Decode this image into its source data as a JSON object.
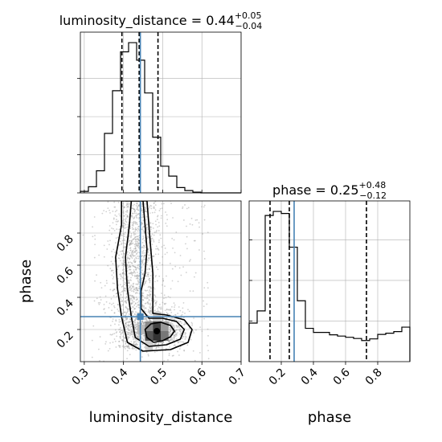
{
  "chart_data": [
    {
      "panel": "top-left",
      "type": "histogram",
      "parameter": "luminosity_distance",
      "title": {
        "prefix": "luminosity_distance = ",
        "median": "0.44",
        "upper": "+0.05",
        "lower": "−0.04"
      },
      "xlim": [
        0.29,
        0.7
      ],
      "bin_edges": [
        0.29,
        0.3105,
        0.331,
        0.3515,
        0.372,
        0.3925,
        0.413,
        0.4335,
        0.454,
        0.4745,
        0.495,
        0.5155,
        0.536,
        0.5565,
        0.577,
        0.5975,
        0.618,
        0.6385,
        0.659,
        0.6795,
        0.7
      ],
      "counts": [
        2,
        8,
        29,
        78,
        134,
        185,
        197,
        174,
        131,
        73,
        35,
        22,
        7,
        3,
        1,
        0,
        0,
        0,
        0,
        0
      ],
      "quantile_lines": [
        0.396,
        0.44,
        0.488
      ],
      "truth": 0.443,
      "grid": true
    },
    {
      "panel": "bottom-left",
      "type": "scatter",
      "x": "luminosity_distance",
      "y": "phase",
      "xlabel": "luminosity_distance",
      "ylabel": "phase",
      "xlim": [
        0.29,
        0.7
      ],
      "ylim": [
        0.0,
        1.0
      ],
      "xticks": [
        "0.3",
        "0.4",
        "0.5",
        "0.6",
        "0.7"
      ],
      "yticks": [
        "0.2",
        "0.4",
        "0.6",
        "0.8"
      ],
      "truth": {
        "x": 0.443,
        "y": 0.28
      },
      "density_peak": {
        "x": 0.485,
        "y": 0.19
      },
      "contours": [
        [
          [
            0.477,
            0.12
          ],
          [
            0.5,
            0.13
          ],
          [
            0.52,
            0.155
          ],
          [
            0.53,
            0.19
          ],
          [
            0.52,
            0.225
          ],
          [
            0.495,
            0.245
          ],
          [
            0.47,
            0.235
          ],
          [
            0.455,
            0.2
          ],
          [
            0.46,
            0.15
          ]
        ],
        [
          [
            0.465,
            0.095
          ],
          [
            0.51,
            0.105
          ],
          [
            0.545,
            0.14
          ],
          [
            0.555,
            0.2
          ],
          [
            0.535,
            0.25
          ],
          [
            0.5,
            0.27
          ],
          [
            0.465,
            0.27
          ],
          [
            0.445,
            0.33
          ],
          [
            0.445,
            0.44
          ],
          [
            0.455,
            0.55
          ],
          [
            0.46,
            0.7
          ],
          [
            0.45,
            1.0
          ],
          [
            0.42,
            1.0
          ],
          [
            0.415,
            0.85
          ],
          [
            0.405,
            0.65
          ],
          [
            0.41,
            0.45
          ],
          [
            0.42,
            0.28
          ],
          [
            0.43,
            0.15
          ]
        ],
        [
          [
            0.45,
            0.065
          ],
          [
            0.52,
            0.075
          ],
          [
            0.565,
            0.12
          ],
          [
            0.575,
            0.2
          ],
          [
            0.555,
            0.26
          ],
          [
            0.51,
            0.29
          ],
          [
            0.475,
            0.3
          ],
          [
            0.475,
            0.42
          ],
          [
            0.475,
            0.55
          ],
          [
            0.468,
            0.75
          ],
          [
            0.46,
            1.0
          ],
          [
            0.395,
            1.0
          ],
          [
            0.395,
            0.85
          ],
          [
            0.38,
            0.65
          ],
          [
            0.385,
            0.45
          ],
          [
            0.395,
            0.28
          ],
          [
            0.41,
            0.12
          ]
        ]
      ],
      "grid": true
    },
    {
      "panel": "bottom-right",
      "type": "histogram",
      "parameter": "phase",
      "title": {
        "prefix": "phase = ",
        "median": "0.25",
        "upper": "+0.48",
        "lower": "−0.12"
      },
      "xlabel": "phase",
      "xlim": [
        0.0,
        1.0
      ],
      "xticks": [
        "0.2",
        "0.4",
        "0.6",
        "0.8"
      ],
      "bin_edges": [
        0.0,
        0.05,
        0.1,
        0.15,
        0.2,
        0.25,
        0.3,
        0.35,
        0.4,
        0.45,
        0.5,
        0.55,
        0.6,
        0.65,
        0.7,
        0.75,
        0.8,
        0.85,
        0.9,
        0.95,
        1.0
      ],
      "counts": [
        95,
        125,
        360,
        370,
        365,
        282,
        150,
        82,
        72,
        72,
        66,
        63,
        60,
        57,
        52,
        56,
        67,
        70,
        74,
        85
      ],
      "quantile_lines": [
        0.13,
        0.25,
        0.73
      ],
      "truth": 0.28,
      "grid": true
    }
  ],
  "colors": {
    "truth": "#4682b4",
    "line": "#000000",
    "grid": "#b0b0b0",
    "scatter": "#9a9a9a"
  }
}
